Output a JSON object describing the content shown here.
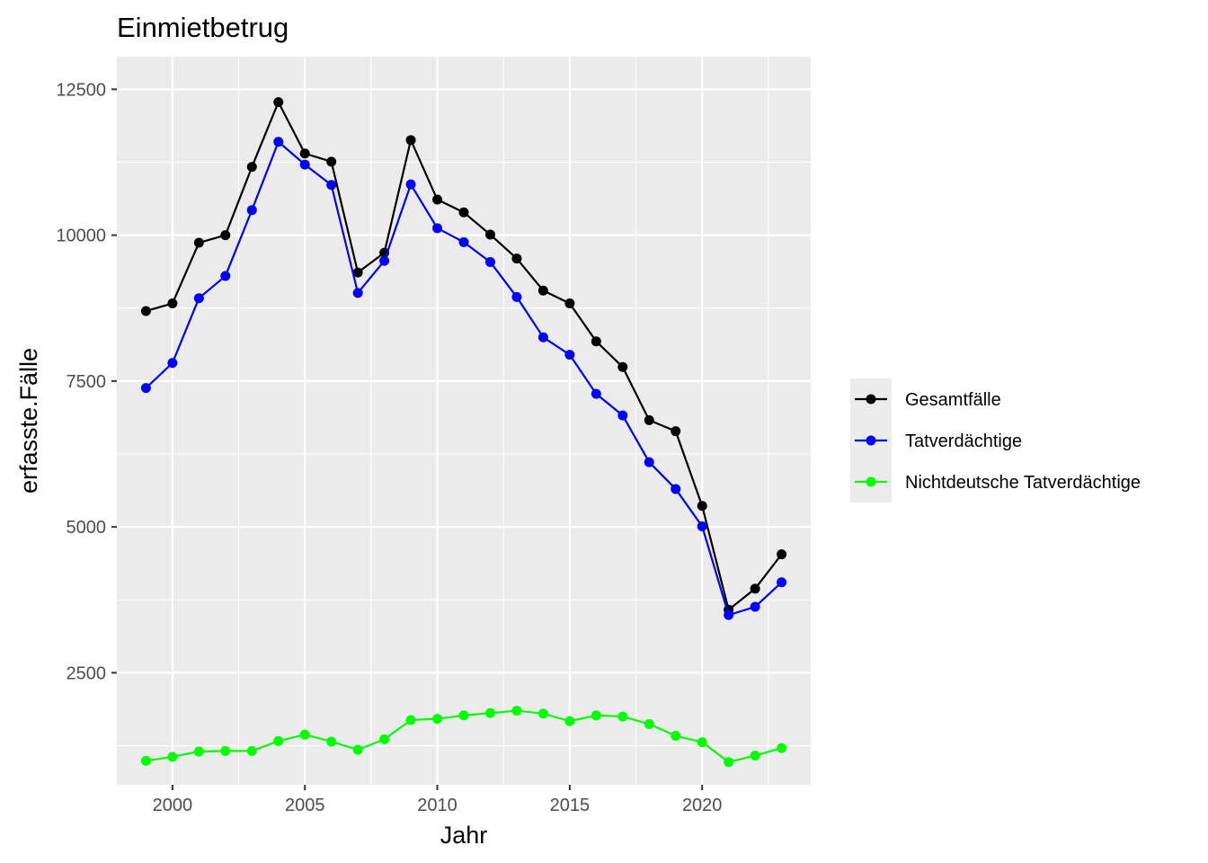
{
  "chart_data": {
    "type": "line",
    "title": "Einmietbetrug",
    "xlabel": "Jahr",
    "ylabel": "erfasste.Fälle",
    "x": [
      1999,
      2000,
      2001,
      2002,
      2003,
      2004,
      2005,
      2006,
      2007,
      2008,
      2009,
      2010,
      2011,
      2012,
      2013,
      2014,
      2015,
      2016,
      2017,
      2018,
      2019,
      2020,
      2021,
      2022,
      2023
    ],
    "xlim": [
      1997.9,
      2024.1
    ],
    "ylim": [
      580,
      13060
    ],
    "x_ticks": [
      2000,
      2005,
      2010,
      2015,
      2020
    ],
    "y_ticks": [
      2500,
      5000,
      7500,
      10000,
      12500
    ],
    "grid": true,
    "legend_position": "right",
    "colors": {
      "panel_background": "#ebebeb",
      "grid": "#ffffff"
    },
    "series": [
      {
        "name": "Gesamtfälle",
        "color": "#000000",
        "values": [
          8700,
          8830,
          9870,
          10000,
          11170,
          12280,
          11400,
          11260,
          9360,
          9700,
          11630,
          10610,
          10390,
          10010,
          9600,
          9050,
          8830,
          8180,
          7740,
          6830,
          6640,
          5360,
          3580,
          3940,
          4530
        ]
      },
      {
        "name": "Tatverdächtige",
        "color": "#0000ff",
        "values": [
          7380,
          7810,
          8920,
          9300,
          10430,
          11600,
          11210,
          10860,
          9010,
          9560,
          10870,
          10120,
          9880,
          9540,
          8940,
          8250,
          7950,
          7280,
          6910,
          6110,
          5650,
          5010,
          3490,
          3630,
          4050
        ]
      },
      {
        "name": "Nichtdeutsche Tatverdächtige",
        "color": "#00ff00",
        "values": [
          990,
          1060,
          1150,
          1160,
          1160,
          1330,
          1440,
          1320,
          1180,
          1360,
          1690,
          1710,
          1770,
          1810,
          1850,
          1800,
          1670,
          1770,
          1750,
          1620,
          1420,
          1310,
          970,
          1080,
          1210
        ]
      }
    ]
  }
}
